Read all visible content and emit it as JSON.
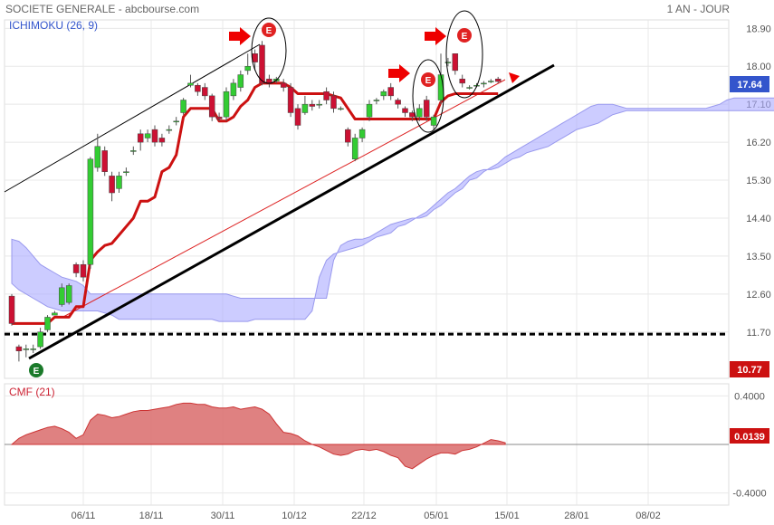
{
  "header": {
    "title": "SOCIETE GENERALE - abcbourse.com",
    "period": "1 AN - JOUR"
  },
  "chart_data": [
    {
      "type": "candlestick",
      "indicator_label": "ICHIMOKU (26, 9)",
      "y_ticks": [
        "18.90",
        "18.00",
        "17.10",
        "16.20",
        "15.30",
        "14.40",
        "13.50",
        "12.60",
        "11.70"
      ],
      "ylim": [
        10.6,
        19.1
      ],
      "last_price_label": "17.64",
      "low_label": "10.77",
      "support_level": 11.65,
      "x_ticks": [
        "06/11",
        "18/11",
        "30/11",
        "10/12",
        "22/12",
        "05/01",
        "15/01",
        "28/01",
        "08/02"
      ],
      "signal_label": "E",
      "colors": {
        "up": "#33cc33",
        "down": "#cc1133",
        "kijun": "#cc1111",
        "cloud": "#aaaaff",
        "trend": "#000000"
      },
      "candles": [
        [
          12.55,
          11.9,
          12.6,
          11.85
        ],
        [
          11.35,
          11.25,
          11.4,
          11.0
        ],
        [
          11.3,
          11.3,
          11.4,
          11.1
        ],
        [
          11.3,
          11.3,
          11.4,
          11.2
        ],
        [
          11.35,
          11.7,
          11.8,
          11.3
        ],
        [
          11.75,
          12.05,
          12.1,
          11.7
        ],
        [
          12.1,
          12.15,
          12.2,
          12.1
        ],
        [
          12.35,
          12.75,
          12.85,
          12.3
        ],
        [
          12.4,
          12.8,
          12.85,
          12.35
        ],
        [
          13.3,
          13.1,
          13.35,
          13.0
        ],
        [
          13.3,
          13.0,
          13.4,
          12.9
        ],
        [
          13.3,
          15.8,
          15.85,
          13.2
        ],
        [
          15.6,
          16.1,
          16.4,
          15.5
        ],
        [
          16.0,
          15.5,
          16.1,
          15.4
        ],
        [
          15.4,
          15.0,
          15.5,
          14.8
        ],
        [
          15.1,
          15.4,
          15.5,
          15.0
        ],
        [
          15.5,
          15.5,
          15.6,
          15.4
        ],
        [
          16.0,
          16.0,
          16.1,
          15.9
        ],
        [
          16.4,
          16.2,
          16.5,
          16.0
        ],
        [
          16.3,
          16.4,
          16.5,
          16.2
        ],
        [
          16.5,
          16.2,
          16.6,
          16.1
        ],
        [
          16.3,
          16.2,
          16.4,
          16.1
        ],
        [
          16.5,
          16.5,
          16.6,
          16.4
        ],
        [
          16.7,
          16.7,
          16.8,
          16.6
        ],
        [
          16.9,
          17.2,
          17.25,
          16.85
        ],
        [
          17.55,
          17.6,
          17.8,
          17.5
        ],
        [
          17.55,
          17.4,
          17.6,
          17.3
        ],
        [
          17.5,
          17.3,
          17.6,
          17.2
        ],
        [
          17.3,
          16.8,
          17.35,
          16.7
        ],
        [
          16.8,
          16.75,
          16.9,
          16.7
        ],
        [
          16.8,
          17.4,
          17.5,
          16.7
        ],
        [
          17.3,
          17.6,
          17.7,
          17.2
        ],
        [
          17.5,
          17.8,
          17.9,
          17.4
        ],
        [
          17.9,
          18.0,
          18.3,
          17.8
        ],
        [
          18.3,
          18.1,
          18.4,
          17.9
        ],
        [
          18.5,
          17.6,
          18.6,
          17.55
        ],
        [
          17.7,
          17.6,
          17.8,
          17.5
        ],
        [
          17.65,
          17.7,
          17.75,
          17.6
        ],
        [
          17.6,
          17.5,
          17.7,
          17.4
        ],
        [
          17.5,
          16.9,
          17.6,
          16.8
        ],
        [
          17.0,
          16.6,
          17.1,
          16.5
        ],
        [
          16.9,
          17.1,
          17.3,
          16.85
        ],
        [
          17.1,
          17.05,
          17.2,
          16.95
        ],
        [
          17.1,
          17.1,
          17.2,
          17.0
        ],
        [
          17.4,
          17.2,
          17.5,
          17.1
        ],
        [
          17.3,
          17.0,
          17.4,
          16.9
        ],
        [
          17.0,
          17.0,
          17.05,
          16.95
        ],
        [
          16.5,
          16.2,
          16.55,
          16.1
        ],
        [
          15.8,
          16.3,
          16.4,
          15.75
        ],
        [
          16.3,
          16.5,
          16.55,
          16.2
        ],
        [
          16.8,
          17.1,
          17.2,
          16.7
        ],
        [
          17.2,
          17.2,
          17.25,
          17.1
        ],
        [
          17.3,
          17.4,
          17.45,
          17.2
        ],
        [
          17.5,
          17.3,
          17.6,
          17.2
        ],
        [
          17.2,
          17.1,
          17.25,
          17.0
        ],
        [
          17.0,
          16.9,
          17.05,
          16.8
        ],
        [
          16.9,
          16.8,
          16.95,
          16.7
        ],
        [
          16.8,
          17.0,
          17.1,
          16.7
        ],
        [
          17.2,
          16.8,
          17.3,
          16.7
        ],
        [
          16.6,
          16.8,
          16.85,
          16.5
        ],
        [
          17.2,
          17.8,
          18.3,
          17.1
        ],
        [
          18.1,
          18.1,
          18.2,
          18.0
        ],
        [
          18.3,
          17.9,
          18.3,
          17.8
        ],
        [
          17.7,
          17.6,
          17.8,
          17.5
        ],
        [
          17.5,
          17.5,
          17.55,
          17.45
        ],
        [
          17.55,
          17.55,
          17.6,
          17.5
        ],
        [
          17.6,
          17.6,
          17.65,
          17.5
        ],
        [
          17.65,
          17.65,
          17.7,
          17.6
        ],
        [
          17.7,
          17.64,
          17.75,
          17.6
        ]
      ],
      "kijun": [
        11.9,
        11.9,
        11.9,
        11.9,
        11.9,
        11.9,
        12.05,
        12.05,
        12.05,
        12.3,
        12.3,
        13.4,
        13.6,
        13.75,
        13.8,
        14.0,
        14.2,
        14.4,
        14.8,
        14.8,
        14.9,
        15.5,
        15.6,
        15.9,
        16.8,
        17.0,
        17.0,
        17.0,
        17.0,
        16.7,
        16.7,
        16.8,
        17.05,
        17.2,
        17.5,
        17.6,
        17.6,
        17.6,
        17.6,
        17.5,
        17.35,
        17.35,
        17.35,
        17.35,
        17.35,
        17.3,
        17.25,
        17.0,
        16.75,
        16.75,
        16.75,
        16.75,
        16.75,
        16.75,
        16.75,
        16.75,
        16.75,
        16.75,
        16.75,
        16.75,
        17.15,
        17.3,
        17.35,
        17.35,
        17.35,
        17.35,
        17.35,
        17.35,
        17.35
      ],
      "cloud_upper": [
        13.9,
        13.85,
        13.7,
        13.5,
        13.3,
        13.2,
        13.1,
        13.0,
        12.95,
        12.9,
        12.8,
        12.6,
        12.6,
        12.6,
        12.6,
        12.6,
        12.6,
        12.6,
        12.6,
        12.6,
        12.6,
        12.6,
        12.6,
        12.6,
        12.6,
        12.6,
        12.6,
        12.6,
        12.6,
        12.6,
        12.6,
        12.55,
        12.5,
        12.5,
        12.5,
        12.5,
        12.5,
        12.5,
        12.5,
        12.5,
        12.5,
        12.5,
        12.5,
        12.5,
        12.5,
        13.4,
        13.75,
        13.85,
        13.9,
        13.9,
        13.95,
        14.05,
        14.15,
        14.25,
        14.3,
        14.35,
        14.4,
        14.4,
        14.45,
        14.6,
        14.7,
        14.85,
        15.0,
        15.1,
        15.3,
        15.35,
        15.5,
        15.6,
        15.7,
        15.85,
        15.95,
        16.05,
        16.15,
        16.25,
        16.35,
        16.45,
        16.55,
        16.65,
        16.75,
        16.85,
        16.95,
        17.05,
        17.1,
        17.1,
        17.1,
        17.05,
        17.0,
        17.0,
        17.0,
        17.0,
        17.0,
        17.0,
        17.0,
        17.0,
        17.0,
        17.0,
        17.0,
        17.0,
        17.05,
        17.1,
        17.2,
        17.25,
        17.25,
        17.25,
        17.25,
        17.25,
        17.25,
        17.25,
        17.25
      ],
      "cloud_lower": [
        12.85,
        12.7,
        12.6,
        12.5,
        12.4,
        12.3,
        12.25,
        12.2,
        12.2,
        12.2,
        12.2,
        12.2,
        12.2,
        12.15,
        12.1,
        12.0,
        12.0,
        12.0,
        12.0,
        12.0,
        12.0,
        12.0,
        12.0,
        12.0,
        12.0,
        12.0,
        12.0,
        12.0,
        12.0,
        11.95,
        11.95,
        11.95,
        11.95,
        11.95,
        12.0,
        12.0,
        12.0,
        12.0,
        12.0,
        12.0,
        12.0,
        12.0,
        12.2,
        13.0,
        13.4,
        13.55,
        13.6,
        13.65,
        13.7,
        13.75,
        13.85,
        13.95,
        14.0,
        14.05,
        14.2,
        14.25,
        14.35,
        14.45,
        14.55,
        14.7,
        14.85,
        15.0,
        15.1,
        15.25,
        15.4,
        15.5,
        15.55,
        15.55,
        15.6,
        15.7,
        15.8,
        15.85,
        15.95,
        16.0,
        16.05,
        16.1,
        16.2,
        16.3,
        16.4,
        16.5,
        16.55,
        16.6,
        16.65,
        16.75,
        16.85,
        16.9,
        16.95,
        16.95,
        16.95,
        16.95,
        16.95,
        16.95,
        16.95,
        16.95,
        16.95,
        16.95,
        16.95,
        16.95,
        16.95,
        16.95,
        16.95,
        16.95,
        16.95,
        16.95,
        16.95,
        16.95,
        16.95,
        16.95,
        16.95
      ]
    },
    {
      "type": "area",
      "indicator_label": "CMF (21)",
      "y_ticks": [
        "0.4000",
        "-0.4000"
      ],
      "ylim": [
        -0.5,
        0.5
      ],
      "last_value_label": "0.0139",
      "values": [
        0.0,
        0.05,
        0.08,
        0.1,
        0.12,
        0.14,
        0.15,
        0.13,
        0.1,
        0.05,
        0.08,
        0.2,
        0.25,
        0.24,
        0.22,
        0.23,
        0.25,
        0.27,
        0.28,
        0.28,
        0.29,
        0.3,
        0.31,
        0.33,
        0.34,
        0.34,
        0.33,
        0.33,
        0.31,
        0.3,
        0.3,
        0.31,
        0.29,
        0.3,
        0.31,
        0.29,
        0.25,
        0.17,
        0.1,
        0.09,
        0.07,
        0.03,
        0.0,
        -0.02,
        -0.05,
        -0.08,
        -0.09,
        -0.08,
        -0.05,
        -0.04,
        -0.05,
        -0.04,
        -0.06,
        -0.09,
        -0.11,
        -0.18,
        -0.2,
        -0.16,
        -0.12,
        -0.09,
        -0.07,
        -0.07,
        -0.08,
        -0.05,
        -0.04,
        -0.02,
        0.01,
        0.04,
        0.03,
        0.0139
      ]
    }
  ]
}
